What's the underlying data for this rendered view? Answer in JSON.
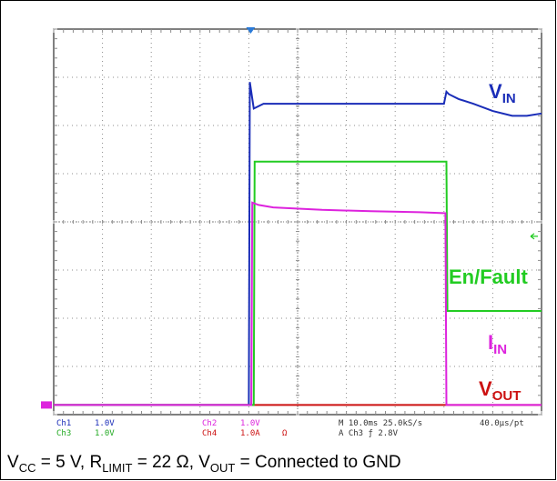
{
  "caption": {
    "parts": [
      {
        "t": "V"
      },
      {
        "s": "CC"
      },
      {
        "t": " = 5 V, R"
      },
      {
        "s": "LIMIT"
      },
      {
        "t": " = 22 Ω, V"
      },
      {
        "s": "OUT"
      },
      {
        "t": " = Connected to GND"
      }
    ]
  },
  "chart_data": {
    "type": "line",
    "xlabel": "",
    "ylabel": "",
    "grid": true,
    "x_range_divisions": [
      0,
      10
    ],
    "y_range_divisions": [
      -4,
      4
    ],
    "timebase": "M 10.0ms 25.0kS/s",
    "sample_interval": "40.0µs/pt",
    "trigger": "A  Ch3  ƒ  2.8V",
    "channels": [
      {
        "id": "Ch1",
        "scale": "1.0V"
      },
      {
        "id": "Ch3",
        "scale": "1.0V"
      },
      {
        "id": "Ch2",
        "scale": "1.0V"
      },
      {
        "id": "Ch4",
        "scale": "1.0A",
        "unit_symbol": "Ω"
      }
    ],
    "series": [
      {
        "name": "V",
        "name_sub": "IN",
        "color": "#1a2db8",
        "x": [
          0,
          4.0,
          4.02,
          4.1,
          4.3,
          6.0,
          8.0,
          8.05,
          8.1,
          8.3,
          8.6,
          9.0,
          9.4,
          9.7,
          10.0
        ],
        "y": [
          -3.8,
          -3.8,
          2.9,
          2.35,
          2.45,
          2.45,
          2.45,
          2.7,
          2.65,
          2.55,
          2.45,
          2.3,
          2.2,
          2.2,
          2.25
        ]
      },
      {
        "name": "En/Fault",
        "color": "#22cc22",
        "x": [
          0,
          4.1,
          4.12,
          6.0,
          8.05,
          8.07,
          10.0
        ],
        "y": [
          -3.8,
          -3.8,
          1.25,
          1.25,
          1.25,
          -1.85,
          -1.85
        ]
      },
      {
        "name": "I",
        "name_sub": "IN",
        "color": "#dd22dd",
        "x": [
          0,
          4.05,
          4.07,
          4.2,
          4.5,
          5.5,
          6.5,
          7.5,
          8.03,
          8.05,
          10.0
        ],
        "y": [
          -3.8,
          -3.8,
          0.4,
          0.35,
          0.3,
          0.25,
          0.22,
          0.2,
          0.18,
          -3.8,
          -3.8
        ]
      },
      {
        "name": "V",
        "name_sub": "OUT",
        "color": "#cc1111",
        "x": [
          0,
          10.0
        ],
        "y": [
          -3.8,
          -3.8
        ]
      }
    ]
  }
}
